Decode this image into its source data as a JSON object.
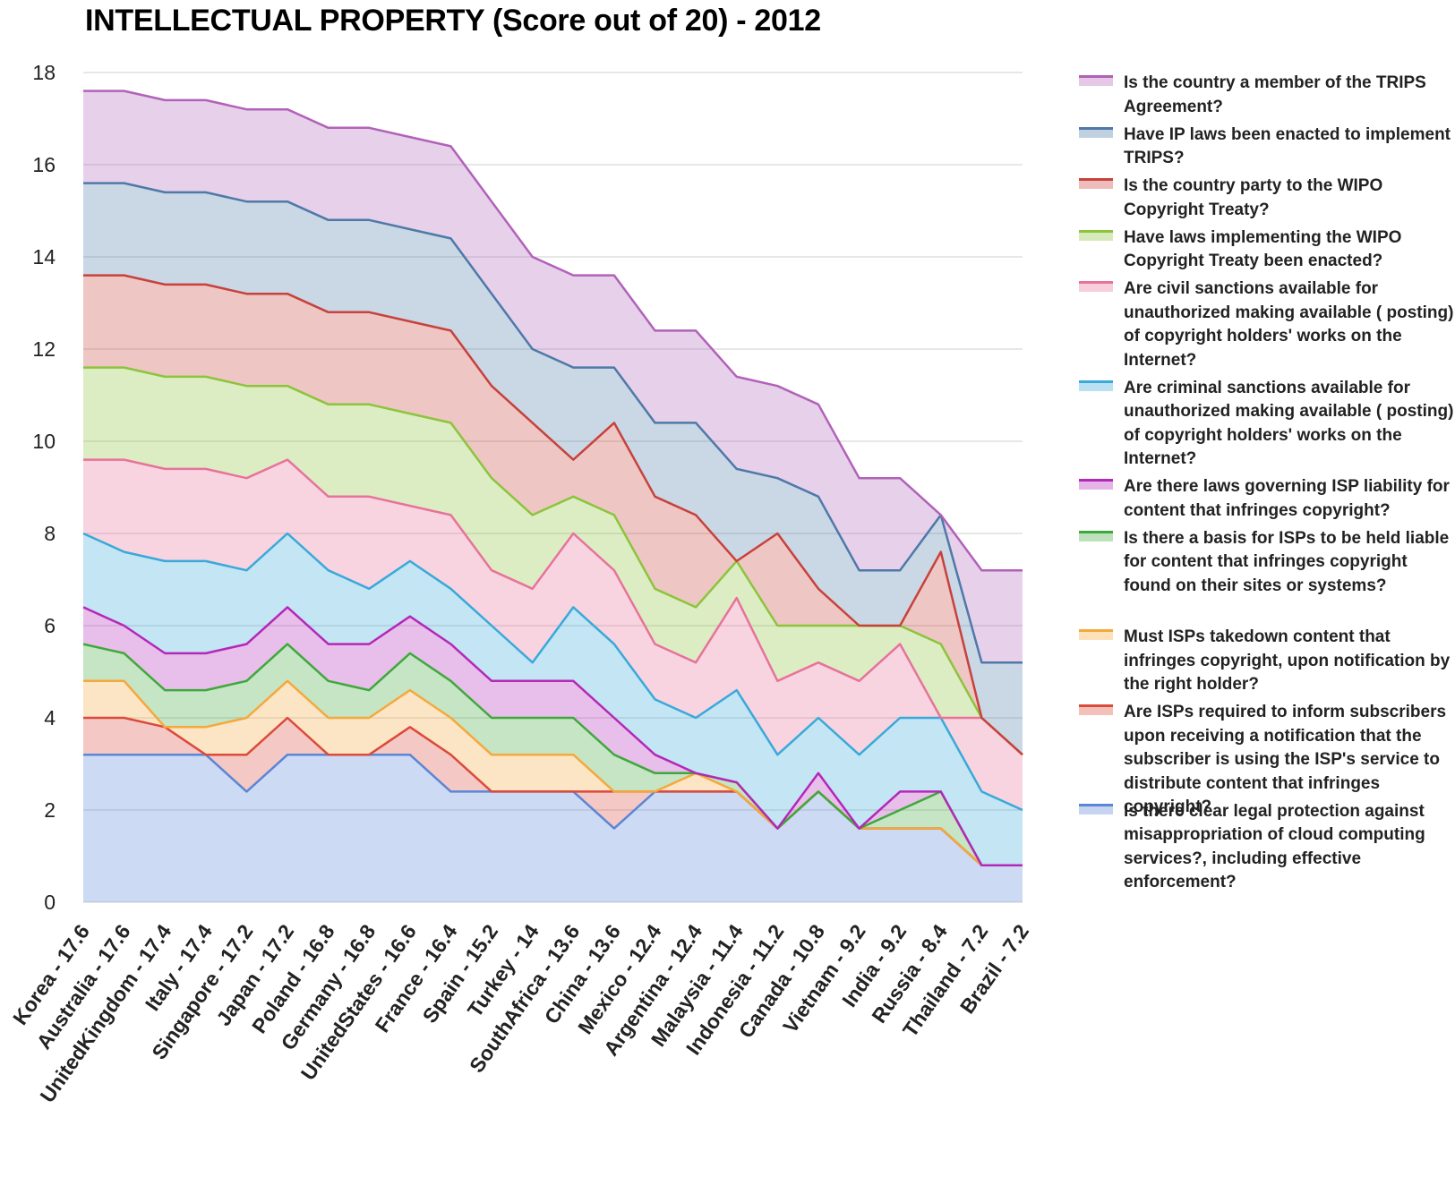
{
  "chart_data": {
    "type": "area",
    "stacked": true,
    "title": "INTELLECTUAL PROPERTY (Score out of 20) - 2012",
    "xlabel": "",
    "ylabel": "",
    "ylim": [
      0,
      18
    ],
    "yticks": [
      0,
      2,
      4,
      6,
      8,
      10,
      12,
      14,
      16,
      18
    ],
    "grid": true,
    "legend_position": "right",
    "categories": [
      "Korea - 17.6",
      "Australia - 17.6",
      "UnitedKingdom - 17.4",
      "Italy - 17.4",
      "Singapore - 17.2",
      "Japan - 17.2",
      "Poland - 16.8",
      "Germany - 16.8",
      "UnitedStates - 16.6",
      "France - 16.4",
      "Spain - 15.2",
      "Turkey - 14",
      "SouthAfrica - 13.6",
      "China - 13.6",
      "Mexico - 12.4",
      "Argentina - 12.4",
      "Malaysia - 11.4",
      "Indonesia - 11.2",
      "Canada - 10.8",
      "Vietnam - 9.2",
      "India - 9.2",
      "Russia - 8.4",
      "Thailand - 7.2",
      "Brazil - 7.2"
    ],
    "series": [
      {
        "name": "Is there clear legal protection against misappropriation of cloud computing services?, including effective enforcement?",
        "color": "#5b85d6",
        "values": [
          3.2,
          3.2,
          3.2,
          3.2,
          2.4,
          3.2,
          3.2,
          3.2,
          3.2,
          2.4,
          2.4,
          2.4,
          2.4,
          1.6,
          2.4,
          2.4,
          2.4,
          1.6,
          2.4,
          1.6,
          1.6,
          1.6,
          0.8,
          0.8
        ]
      },
      {
        "name": "Are ISPs required to inform subscribers upon receiving a notification that the subscriber is using the ISP's service to distribute content that infringes copyright?",
        "color": "#dc4a3a",
        "values": [
          0.8,
          0.8,
          0.6,
          0,
          0.8,
          0.8,
          0,
          0,
          0.6,
          0.8,
          0,
          0,
          0,
          0.8,
          0,
          0,
          0,
          0,
          0,
          0,
          0,
          0,
          0,
          0
        ]
      },
      {
        "name": "Must ISPs takedown content that infringes copyright, upon notification by the right holder?",
        "color": "#f5a83c",
        "values": [
          0.8,
          0.8,
          0,
          0.6,
          0.8,
          0.8,
          0.8,
          0.8,
          0.8,
          0.8,
          0.8,
          0.8,
          0.8,
          0,
          0,
          0.4,
          0,
          0,
          0,
          0,
          0,
          0,
          0,
          0
        ]
      },
      {
        "name": "Is there a basis for ISPs to be held liable for content that infringes copyright found on their sites or systems?",
        "color": "#3fa83c",
        "values": [
          0.8,
          0.6,
          0.8,
          0.8,
          0.8,
          0.8,
          0.8,
          0.6,
          0.8,
          0.8,
          0.8,
          0.8,
          0.8,
          0.8,
          0.4,
          0,
          0.2,
          0,
          0,
          0,
          0.4,
          0.8,
          0,
          0
        ]
      },
      {
        "name": "Are there laws governing ISP liability for content that infringes copyright?",
        "color": "#b428b8",
        "values": [
          0.8,
          0.6,
          0.8,
          0.8,
          0.8,
          0.8,
          0.8,
          1.0,
          0.8,
          0.8,
          0.8,
          0.8,
          0.8,
          0.8,
          0.4,
          0,
          0,
          0,
          0.4,
          0,
          0.4,
          0,
          0,
          0
        ]
      },
      {
        "name": "Are criminal sanctions available for unauthorized making available ( posting) of copyright holders' works on the Internet?",
        "color": "#39a9d9",
        "values": [
          1.6,
          1.6,
          2.0,
          2.0,
          1.6,
          1.6,
          1.6,
          1.2,
          1.2,
          1.2,
          1.2,
          0.4,
          1.6,
          1.6,
          1.2,
          1.2,
          2.0,
          1.6,
          1.2,
          1.6,
          1.6,
          1.6,
          1.6,
          1.2
        ]
      },
      {
        "name": "Are civil sanctions available for unauthorized making available ( posting) of copyright holders' works on the Internet?",
        "color": "#e8729a",
        "values": [
          1.6,
          2.0,
          2.0,
          2.0,
          2.0,
          1.6,
          1.6,
          2.0,
          1.2,
          1.6,
          1.2,
          1.6,
          1.6,
          1.6,
          1.2,
          1.2,
          2.0,
          1.6,
          1.2,
          1.6,
          1.6,
          0,
          1.6,
          1.2
        ]
      },
      {
        "name": "Have laws implementing the WIPO Copyright Treaty been enacted?",
        "color": "#8cc43c",
        "values": [
          2.0,
          2.0,
          2.0,
          2.0,
          2.0,
          1.6,
          2.0,
          2.0,
          2.0,
          2.0,
          2.0,
          1.6,
          0.8,
          1.2,
          1.2,
          1.2,
          0.8,
          1.2,
          0.8,
          1.2,
          0.4,
          1.6,
          0,
          0
        ]
      },
      {
        "name": "Is the country party to the WIPO Copyright Treaty?",
        "color": "#c8413c",
        "values": [
          2.0,
          2.0,
          2.0,
          2.0,
          2.0,
          2.0,
          2.0,
          2.0,
          2.0,
          2.0,
          2.0,
          2.0,
          0.8,
          2.0,
          2.0,
          2.0,
          0,
          2.0,
          0.8,
          0,
          0,
          2.0,
          0,
          0
        ]
      },
      {
        "name": "Have IP laws been enacted to implement TRIPS?",
        "color": "#4e79a8",
        "values": [
          2.0,
          2.0,
          2.0,
          2.0,
          2.0,
          2.0,
          2.0,
          2.0,
          2.0,
          2.0,
          2.0,
          1.6,
          2.0,
          1.2,
          1.6,
          2.0,
          2.0,
          1.2,
          2.0,
          1.2,
          1.2,
          0.8,
          1.2,
          2.0
        ]
      },
      {
        "name": "Is the country a member of the TRIPS Agreement?",
        "color": "#b162b8",
        "values": [
          2.0,
          2.0,
          2.0,
          2.0,
          2.0,
          2.0,
          2.0,
          2.0,
          2.0,
          2.0,
          2.0,
          2.0,
          2.0,
          2.0,
          2.0,
          2.0,
          2.0,
          2.0,
          2.0,
          2.0,
          2.0,
          0,
          2.0,
          2.0
        ]
      }
    ]
  }
}
